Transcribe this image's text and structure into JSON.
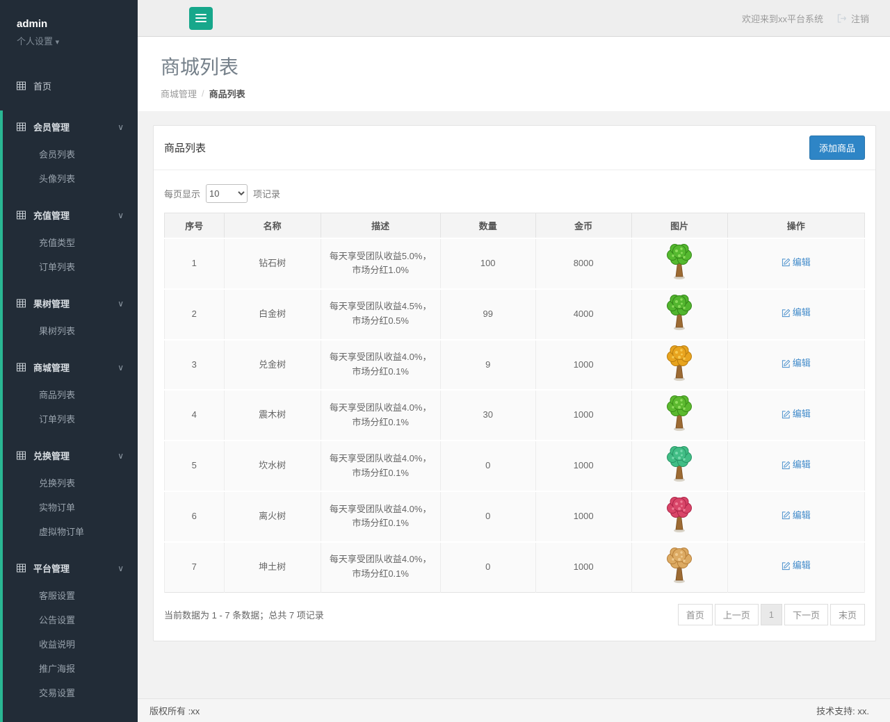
{
  "colors": {
    "sidebar_bg": "#222c37",
    "accent_green": "#2ab793",
    "toggle_green": "#17a78b",
    "button_blue": "#2e85c6",
    "link_blue": "#428bca"
  },
  "icons": {
    "chevron_down": "∨",
    "caret_down": "▾",
    "menu_grid": "grid",
    "logout": "sign-out",
    "edit": "pencil-square"
  },
  "sidebar": {
    "user": {
      "name": "admin",
      "settings_label": "个人设置"
    },
    "home": {
      "label": "首页"
    },
    "sections": [
      {
        "label": "会员管理",
        "children": [
          "会员列表",
          "头像列表"
        ]
      },
      {
        "label": "充值管理",
        "children": [
          "充值类型",
          "订单列表"
        ]
      },
      {
        "label": "果树管理",
        "children": [
          "果树列表"
        ]
      },
      {
        "label": "商城管理",
        "children": [
          "商品列表",
          "订单列表"
        ]
      },
      {
        "label": "兑换管理",
        "children": [
          "兑换列表",
          "实物订单",
          "虚拟物订单"
        ]
      },
      {
        "label": "平台管理",
        "children": [
          "客服设置",
          "公告设置",
          "收益说明",
          "推广海报",
          "交易设置"
        ]
      }
    ]
  },
  "topbar": {
    "welcome": "欢迎来到xx平台系统",
    "logout": "注销"
  },
  "page": {
    "title": "商城列表",
    "breadcrumb": [
      "商城管理",
      "商品列表"
    ],
    "breadcrumb_separator": "/"
  },
  "panel": {
    "title": "商品列表",
    "add_button": "添加商品",
    "per_page": {
      "prefix": "每页显示",
      "value": "10",
      "suffix": "项记录"
    },
    "table": {
      "headers": [
        "序号",
        "名称",
        "描述",
        "数量",
        "金币",
        "图片",
        "操作"
      ],
      "edit_label": "编辑",
      "rows": [
        {
          "no": "1",
          "name": "钻石树",
          "desc": "每天享受团队收益5.0%，市场分红1.0%",
          "qty": "100",
          "coins": "8000",
          "tree_colors": {
            "canopy": "#55b92f",
            "canopy_dark": "#35871a",
            "canopy_light": "#8fdc5e",
            "trunk": "#9c6a33"
          }
        },
        {
          "no": "2",
          "name": "白金树",
          "desc": "每天享受团队收益4.5%，市场分红0.5%",
          "qty": "99",
          "coins": "4000",
          "tree_colors": {
            "canopy": "#52b52e",
            "canopy_dark": "#338419",
            "canopy_light": "#8bd95b",
            "trunk": "#9c6a33"
          }
        },
        {
          "no": "3",
          "name": "兑金树",
          "desc": "每天享受团队收益4.0%，市场分红0.1%",
          "qty": "9",
          "coins": "1000",
          "tree_colors": {
            "canopy": "#e8a41f",
            "canopy_dark": "#b97c0f",
            "canopy_light": "#f6ca52",
            "trunk": "#9c6a33"
          }
        },
        {
          "no": "4",
          "name": "震木树",
          "desc": "每天享受团队收益4.0%，市场分红0.1%",
          "qty": "30",
          "coins": "1000",
          "tree_colors": {
            "canopy": "#5cb92f",
            "canopy_dark": "#3a8d18",
            "canopy_light": "#92dd60",
            "trunk": "#9c6a33"
          }
        },
        {
          "no": "5",
          "name": "坎水树",
          "desc": "每天享受团队收益4.0%，市场分红0.1%",
          "qty": "0",
          "coins": "1000",
          "tree_colors": {
            "canopy": "#41bd85",
            "canopy_dark": "#279465",
            "canopy_light": "#78d9ad",
            "trunk": "#9c6a33"
          }
        },
        {
          "no": "6",
          "name": "离火树",
          "desc": "每天享受团队收益4.0%，市场分红0.1%",
          "qty": "0",
          "coins": "1000",
          "tree_colors": {
            "canopy": "#d84568",
            "canopy_dark": "#ad2448",
            "canopy_light": "#ee7d96",
            "trunk": "#9c6a33"
          }
        },
        {
          "no": "7",
          "name": "坤土树",
          "desc": "每天享受团队收益4.0%，市场分红0.1%",
          "qty": "0",
          "coins": "1000",
          "tree_colors": {
            "canopy": "#dcaa63",
            "canopy_dark": "#b57d37",
            "canopy_light": "#efcb90",
            "trunk": "#9c6a33"
          }
        }
      ]
    },
    "summary": "当前数据为 1 - 7 条数据；总共 7 项记录",
    "pagination": {
      "labels": [
        "首页",
        "上一页",
        "1",
        "下一页",
        "末页"
      ],
      "active_index": 2
    }
  },
  "footer": {
    "left": "版权所有 :xx",
    "right": "技术支持: xx."
  }
}
